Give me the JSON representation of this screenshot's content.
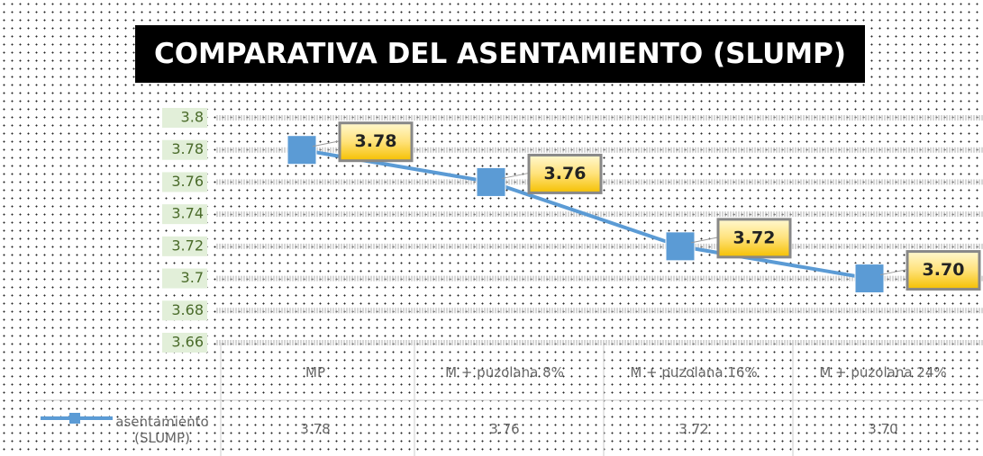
{
  "chart_data": {
    "type": "line",
    "title": "COMPARATIVA DEL ASENTAMIENTO (SLUMP)",
    "categories": [
      "MP",
      "M + puzolana 8%",
      "M + puzolana 16%",
      "M + puzolana 24%"
    ],
    "series": [
      {
        "name": "asentamiento (SLUMP)",
        "color": "#5b9bd5",
        "values": [
          3.78,
          3.76,
          3.72,
          3.7
        ],
        "value_labels": [
          "3.78",
          "3.76",
          "3.72",
          "3.70"
        ]
      }
    ],
    "ylim": [
      3.66,
      3.8
    ],
    "yticks": [
      3.66,
      3.68,
      3.7,
      3.72,
      3.74,
      3.76,
      3.78,
      3.8
    ],
    "grid": true,
    "data_table": true
  }
}
